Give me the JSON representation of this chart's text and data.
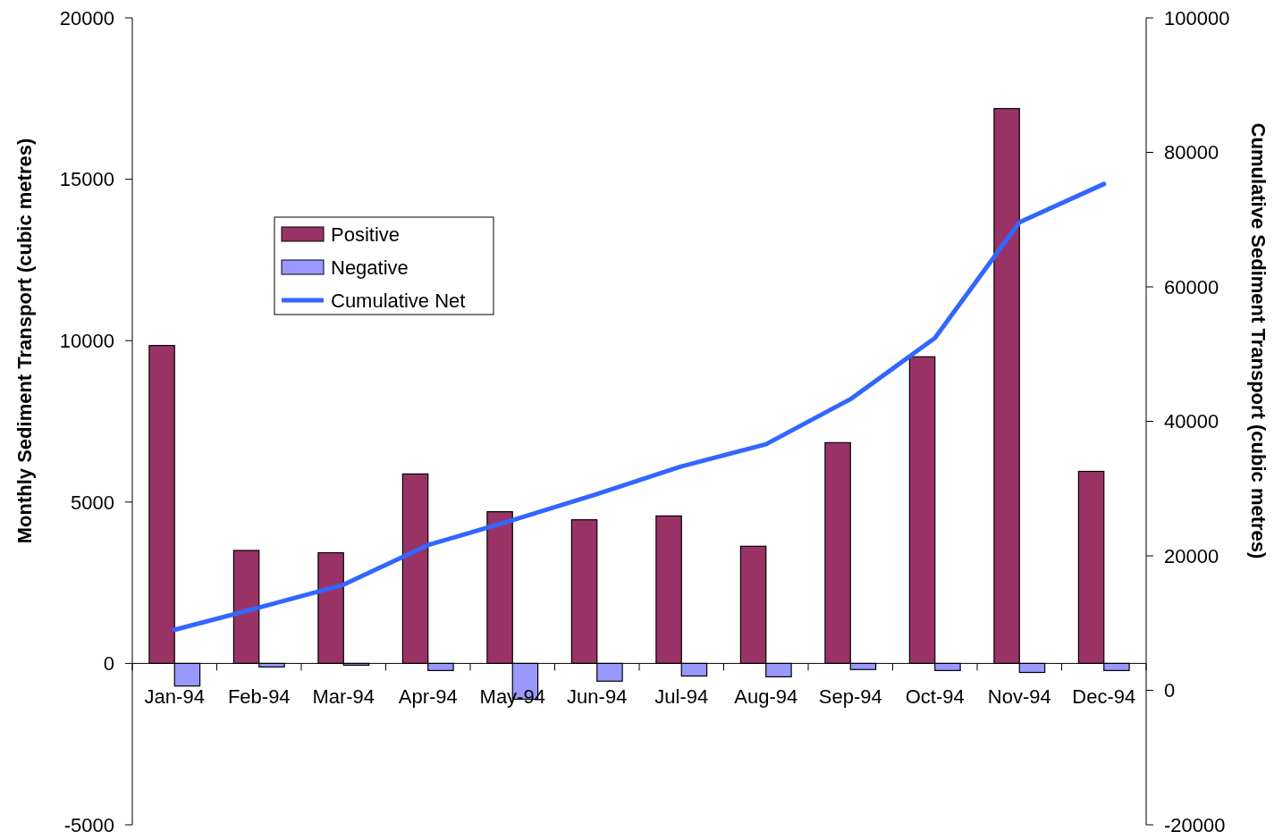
{
  "chart_data": {
    "type": "bar",
    "categories": [
      "Jan-94",
      "Feb-94",
      "Mar-94",
      "Apr-94",
      "May-94",
      "Jun-94",
      "Jul-94",
      "Aug-94",
      "Sep-94",
      "Oct-94",
      "Nov-94",
      "Dec-94"
    ],
    "series": [
      {
        "name": "Positive",
        "color": "#993366",
        "values": [
          9850,
          3500,
          3430,
          5870,
          4700,
          4450,
          4570,
          3630,
          6840,
          9500,
          17190,
          5950
        ]
      },
      {
        "name": "Negative",
        "color": "#9999ff",
        "values": [
          -700,
          -110,
          -55,
          -220,
          -1110,
          -550,
          -390,
          -415,
          -190,
          -220,
          -280,
          -220
        ]
      },
      {
        "name": "Cumulative Net",
        "type": "line",
        "axis": "y2",
        "color": "#3366ff",
        "values": [
          9000,
          12300,
          15700,
          21600,
          25300,
          29200,
          33300,
          36600,
          43300,
          52400,
          69600,
          75300
        ]
      }
    ],
    "ylabel": "Monthly Sediment Transport (cubic metres)",
    "y2label": "Cumulative Sediment Transport (cubic metres)",
    "ylim": [
      -5000,
      20000
    ],
    "yticks": [
      -5000,
      0,
      5000,
      10000,
      15000,
      20000
    ],
    "y2lim": [
      -20000,
      100000
    ],
    "y2ticks": [
      -20000,
      0,
      20000,
      40000,
      60000,
      80000,
      100000
    ],
    "legend": "top left",
    "grid": false,
    "marker": "none",
    "line_style": "solid"
  }
}
